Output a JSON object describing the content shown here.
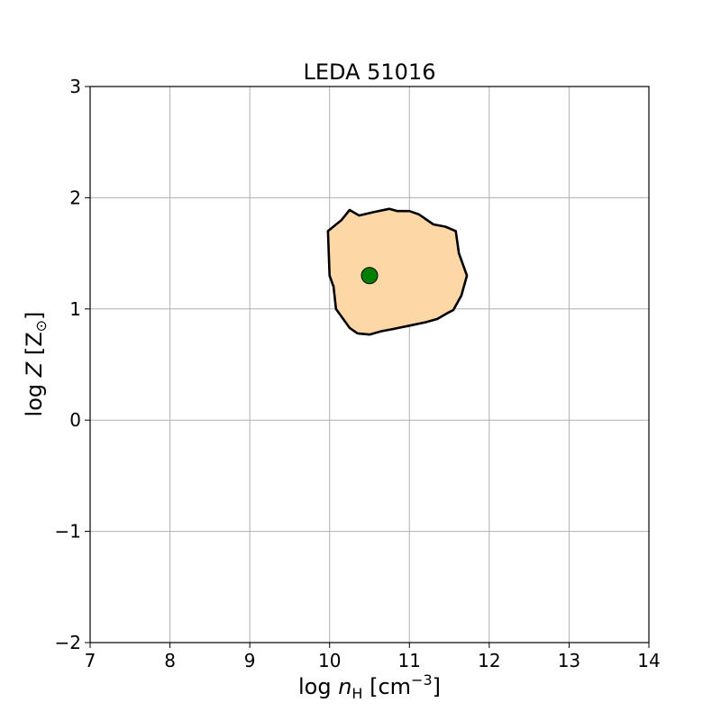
{
  "chart_data": {
    "type": "scatter",
    "title": "LEDA 51016",
    "xlabel": {
      "prefix": "log ",
      "var": "n",
      "sub": "H",
      "unit_open": " [cm",
      "unit_sup": "−3",
      "unit_close": "]"
    },
    "ylabel": {
      "prefix": "log ",
      "var": "Z",
      "unit_open": " [Z",
      "unit_sub": "⊙",
      "unit_close": "]"
    },
    "xlim": [
      7,
      14
    ],
    "ylim": [
      -2,
      3
    ],
    "xticks": [
      7,
      8,
      9,
      10,
      11,
      12,
      13,
      14
    ],
    "yticks": [
      -2,
      -1,
      0,
      1,
      2,
      3
    ],
    "xtick_labels": [
      "7",
      "8",
      "9",
      "10",
      "11",
      "12",
      "13",
      "14"
    ],
    "ytick_labels": [
      "−2",
      "−1",
      "0",
      "1",
      "2",
      "3"
    ],
    "grid": true,
    "region": {
      "fill": "#fdd7a6",
      "stroke": "#000000",
      "points": [
        [
          9.98,
          1.7
        ],
        [
          10.15,
          1.8
        ],
        [
          10.25,
          1.89
        ],
        [
          10.37,
          1.84
        ],
        [
          10.55,
          1.87
        ],
        [
          10.75,
          1.9
        ],
        [
          10.85,
          1.88
        ],
        [
          11.0,
          1.88
        ],
        [
          11.12,
          1.85
        ],
        [
          11.3,
          1.76
        ],
        [
          11.45,
          1.74
        ],
        [
          11.58,
          1.7
        ],
        [
          11.62,
          1.5
        ],
        [
          11.72,
          1.3
        ],
        [
          11.65,
          1.12
        ],
        [
          11.55,
          0.99
        ],
        [
          11.47,
          0.96
        ],
        [
          11.35,
          0.91
        ],
        [
          11.2,
          0.88
        ],
        [
          11.0,
          0.85
        ],
        [
          10.8,
          0.82
        ],
        [
          10.65,
          0.8
        ],
        [
          10.5,
          0.77
        ],
        [
          10.35,
          0.78
        ],
        [
          10.25,
          0.83
        ],
        [
          10.08,
          1.0
        ],
        [
          10.05,
          1.2
        ],
        [
          10.0,
          1.3
        ],
        [
          9.98,
          1.7
        ]
      ]
    },
    "points": [
      {
        "x": 10.5,
        "y": 1.3,
        "color": "#008000"
      }
    ]
  }
}
